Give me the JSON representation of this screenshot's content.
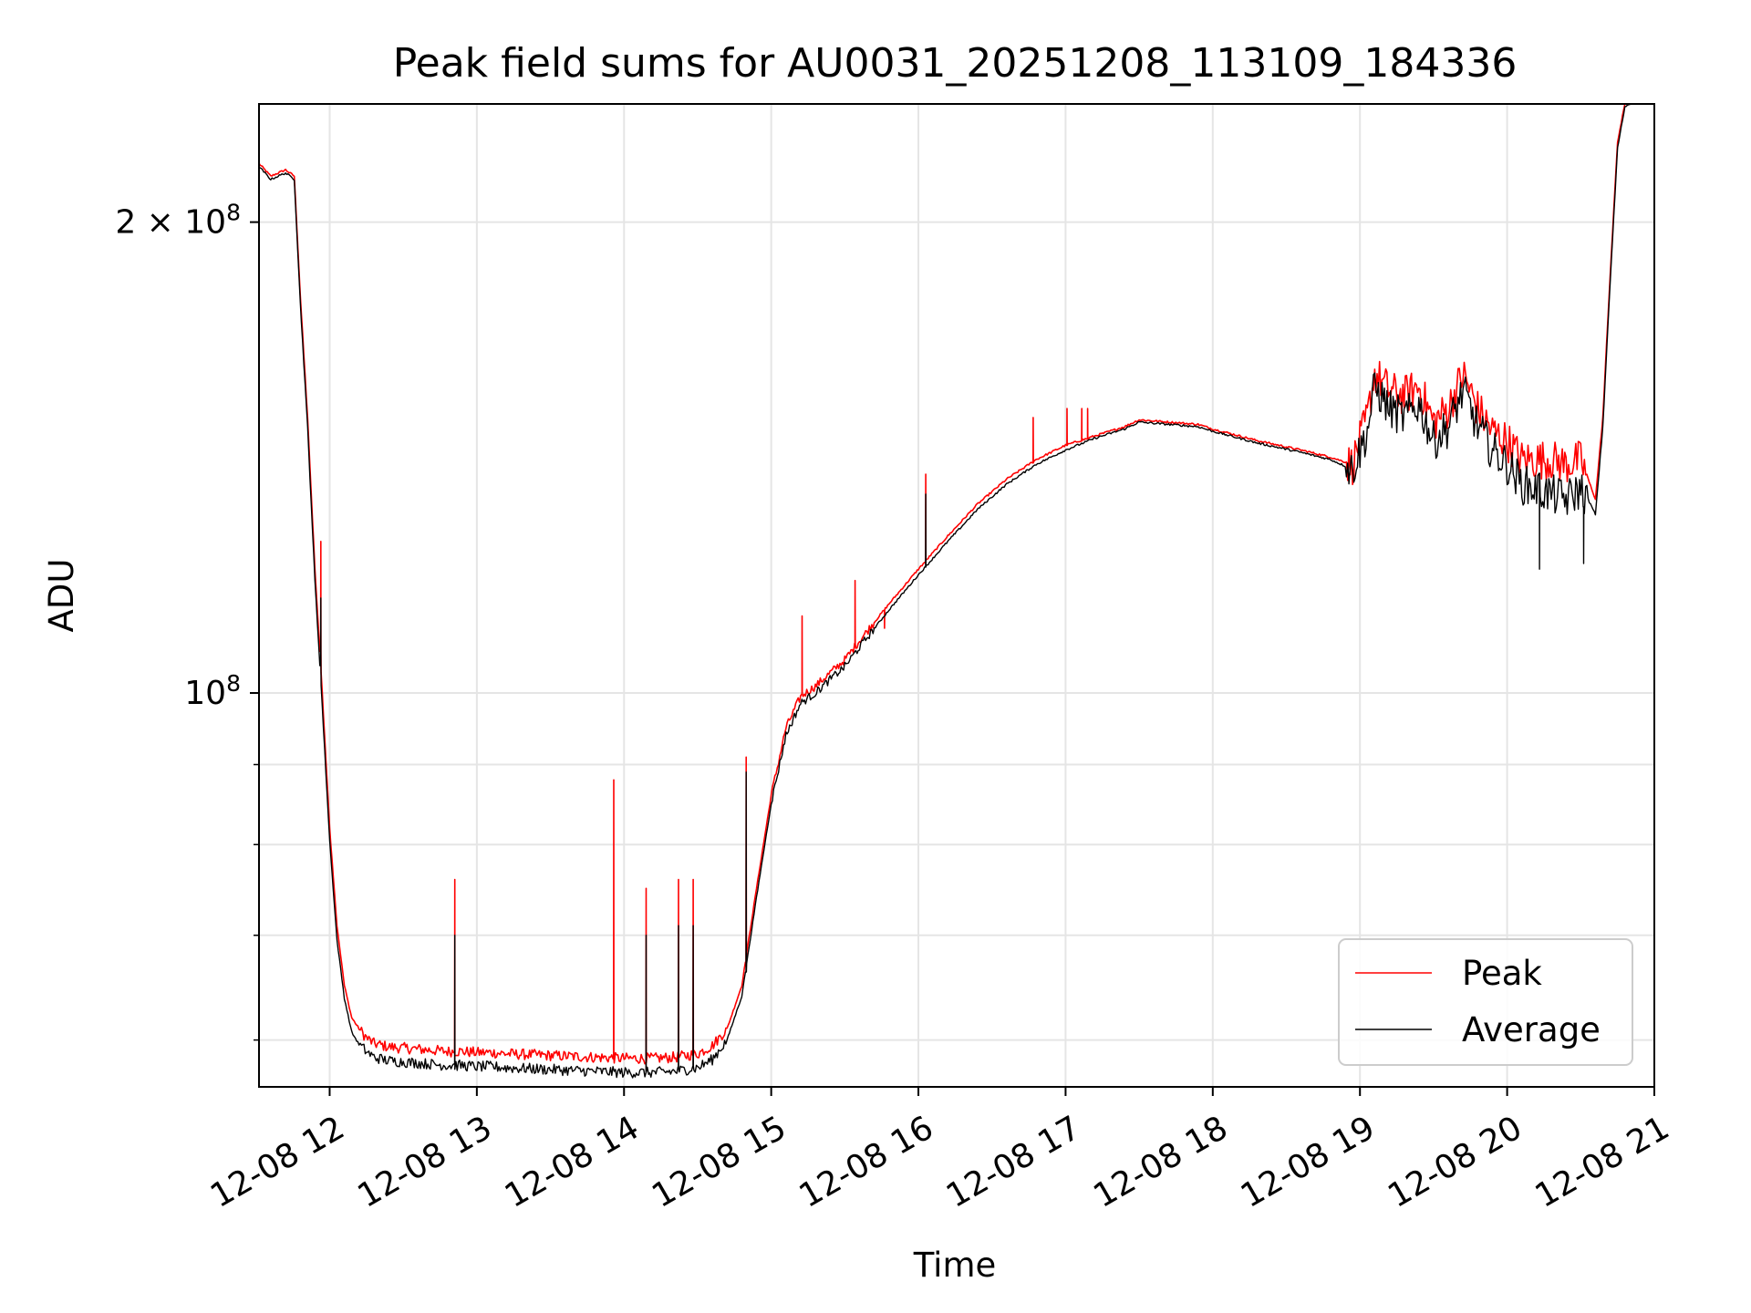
{
  "chart_data": {
    "type": "line",
    "title": "Peak field sums for AU0031_20251208_113109_184336",
    "xlabel": "Time",
    "ylabel": "ADU",
    "y_scale": "log",
    "x_unit": "hours",
    "xlim": [
      11.52,
      21.0
    ],
    "ylim": [
      56000000,
      238000000
    ],
    "x_ticks": [
      {
        "value": 12,
        "label": "12-08 12"
      },
      {
        "value": 13,
        "label": "12-08 13"
      },
      {
        "value": 14,
        "label": "12-08 14"
      },
      {
        "value": 15,
        "label": "12-08 15"
      },
      {
        "value": 16,
        "label": "12-08 16"
      },
      {
        "value": 17,
        "label": "12-08 17"
      },
      {
        "value": 18,
        "label": "12-08 18"
      },
      {
        "value": 19,
        "label": "12-08 19"
      },
      {
        "value": 20,
        "label": "12-08 20"
      },
      {
        "value": 21,
        "label": "12-08 21"
      }
    ],
    "y_major_ticks": [
      {
        "value": 100000000,
        "base": "10",
        "exp": "8",
        "mult": ""
      },
      {
        "value": 200000000,
        "base": "10",
        "exp": "8",
        "mult": "2 × "
      }
    ],
    "y_minor_ticks": [
      60000000,
      70000000,
      80000000,
      90000000
    ],
    "grid": true,
    "legend_position": "bottom-right",
    "series": [
      {
        "name": "Peak",
        "color": "#ff0000",
        "x": [
          11.52,
          11.6,
          11.7,
          11.76,
          11.8,
          11.85,
          11.9,
          11.95,
          12.0,
          12.05,
          12.1,
          12.15,
          12.2,
          12.25,
          12.3,
          12.4,
          12.5,
          12.6,
          12.7,
          12.8,
          12.9,
          13.0,
          13.1,
          13.2,
          13.4,
          13.6,
          13.8,
          14.0,
          14.2,
          14.35,
          14.5,
          14.6,
          14.7,
          14.8,
          14.9,
          15.0,
          15.1,
          15.2,
          15.3,
          15.4,
          15.5,
          15.6,
          15.8,
          16.0,
          16.2,
          16.4,
          16.6,
          16.8,
          17.0,
          17.2,
          17.4,
          17.5,
          17.7,
          17.9,
          18.0,
          18.3,
          18.6,
          18.8,
          18.95,
          19.05,
          19.1,
          19.2,
          19.3,
          19.4,
          19.5,
          19.6,
          19.7,
          19.8,
          19.9,
          20.0,
          20.1,
          20.2,
          20.3,
          20.4,
          20.5,
          20.55,
          20.6,
          20.65,
          20.7,
          20.75,
          20.8,
          20.86
        ],
        "values": [
          218000000,
          214000000,
          216000000,
          214000000,
          180000000,
          150000000,
          120000000,
          100000000,
          82000000,
          71000000,
          65000000,
          62000000,
          61000000,
          60200000,
          59700000,
          59400000,
          59300000,
          59200000,
          59100000,
          59000000,
          59000000,
          58900000,
          58900000,
          58800000,
          58700000,
          58600000,
          58500000,
          58400000,
          58400000,
          58500000,
          58800000,
          59500000,
          61000000,
          65000000,
          75000000,
          86000000,
          95000000,
          99500000,
          101000000,
          103000000,
          105000000,
          108000000,
          114000000,
          120000000,
          126000000,
          132000000,
          137000000,
          141000000,
          144000000,
          146000000,
          148000000,
          149500000,
          149000000,
          148500000,
          147500000,
          145000000,
          143000000,
          141500000,
          140000000,
          150000000,
          160000000,
          156000000,
          155000000,
          157000000,
          149000000,
          152000000,
          160000000,
          152000000,
          147000000,
          145000000,
          141000000,
          141000000,
          141000000,
          140000000,
          141000000,
          137000000,
          133000000,
          150000000,
          185000000,
          225000000,
          238000000,
          240000000
        ],
        "spikes": [
          [
            11.94,
            125000000
          ],
          [
            12.85,
            76000000
          ],
          [
            13.93,
            88000000
          ],
          [
            14.15,
            75000000
          ],
          [
            14.37,
            76000000
          ],
          [
            14.47,
            76000000
          ],
          [
            14.83,
            91000000
          ],
          [
            15.21,
            112000000
          ],
          [
            15.57,
            118000000
          ],
          [
            16.05,
            138000000
          ],
          [
            15.77,
            110000000
          ],
          [
            16.78,
            150000000
          ],
          [
            17.01,
            152000000
          ],
          [
            17.11,
            152000000
          ],
          [
            17.15,
            152000000
          ]
        ]
      },
      {
        "name": "Average",
        "color": "#000000",
        "x": [
          11.52,
          11.6,
          11.7,
          11.76,
          11.8,
          11.85,
          11.9,
          11.95,
          12.0,
          12.05,
          12.1,
          12.15,
          12.2,
          12.25,
          12.3,
          12.4,
          12.5,
          12.6,
          12.7,
          12.8,
          12.9,
          13.0,
          13.1,
          13.2,
          13.4,
          13.6,
          13.8,
          14.0,
          14.2,
          14.35,
          14.5,
          14.6,
          14.7,
          14.8,
          14.9,
          15.0,
          15.1,
          15.2,
          15.3,
          15.4,
          15.5,
          15.6,
          15.8,
          16.0,
          16.2,
          16.4,
          16.6,
          16.8,
          17.0,
          17.2,
          17.4,
          17.5,
          17.7,
          17.9,
          18.0,
          18.3,
          18.6,
          18.8,
          18.95,
          19.05,
          19.1,
          19.2,
          19.3,
          19.4,
          19.5,
          19.6,
          19.7,
          19.8,
          19.9,
          20.0,
          20.1,
          20.2,
          20.3,
          20.4,
          20.5,
          20.55,
          20.6,
          20.65,
          20.7,
          20.75,
          20.8,
          20.86
        ],
        "values": [
          217000000,
          213000000,
          215000000,
          213000000,
          178000000,
          148000000,
          118000000,
          98000000,
          80500000,
          69500000,
          63800000,
          60700000,
          59600000,
          59000000,
          58500000,
          58200000,
          58100000,
          58000000,
          57900000,
          57800000,
          57800000,
          57700000,
          57700000,
          57600000,
          57500000,
          57400000,
          57300000,
          57200000,
          57200000,
          57300000,
          57600000,
          58300000,
          60000000,
          64000000,
          74000000,
          85000000,
          94000000,
          98500000,
          100000000,
          102000000,
          104000000,
          107000000,
          113000000,
          119000000,
          125000000,
          131000000,
          136000000,
          140000000,
          143000000,
          145500000,
          147500000,
          149000000,
          148500000,
          148000000,
          147000000,
          144500000,
          142500000,
          141000000,
          139000000,
          147000000,
          157000000,
          152000000,
          150000000,
          153000000,
          145000000,
          148000000,
          156000000,
          148000000,
          143000000,
          140000000,
          136000000,
          135000000,
          134000000,
          133000000,
          135000000,
          133000000,
          130000000,
          148000000,
          183000000,
          223000000,
          237000000,
          239000000
        ],
        "spikes": [
          [
            11.94,
            115000000
          ],
          [
            12.85,
            70000000
          ],
          [
            14.15,
            70000000
          ],
          [
            14.37,
            71000000
          ],
          [
            14.47,
            71000000
          ],
          [
            14.83,
            89000000
          ],
          [
            16.05,
            134000000
          ],
          [
            20.22,
            120000000
          ],
          [
            20.52,
            121000000
          ]
        ]
      }
    ]
  }
}
